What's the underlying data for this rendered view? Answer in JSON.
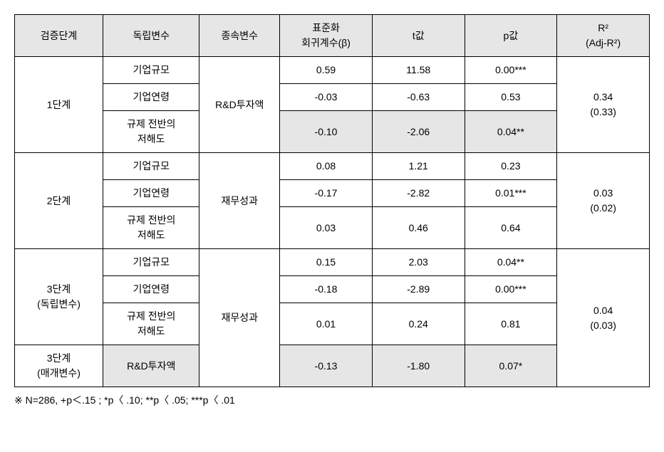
{
  "headers": {
    "stage": "검증단계",
    "indep": "독립변수",
    "dep": "종속변수",
    "beta": "표준화\n회귀계수(β)",
    "t": "t값",
    "p": "p값",
    "r2": "R²\n(Adj-R²)"
  },
  "stages": [
    {
      "label": "1단계",
      "dep": "R&D투자액",
      "r2": "0.34\n(0.33)",
      "rows": [
        {
          "indep": "기업규모",
          "beta": "0.59",
          "t": "11.58",
          "p": "0.00***",
          "shaded": false
        },
        {
          "indep": "기업연령",
          "beta": "-0.03",
          "t": "-0.63",
          "p": "0.53",
          "shaded": false
        },
        {
          "indep": "규제 전반의\n저해도",
          "beta": "-0.10",
          "t": "-2.06",
          "p": "0.04**",
          "shaded": true
        }
      ]
    },
    {
      "label": "2단계",
      "dep": "재무성과",
      "r2": "0.03\n(0.02)",
      "rows": [
        {
          "indep": "기업규모",
          "beta": "0.08",
          "t": "1.21",
          "p": "0.23",
          "shaded": false
        },
        {
          "indep": "기업연령",
          "beta": "-0.17",
          "t": "-2.82",
          "p": "0.01***",
          "shaded": false
        },
        {
          "indep": "규제 전반의\n저해도",
          "beta": "0.03",
          "t": "0.46",
          "p": "0.64",
          "shaded": false
        }
      ]
    }
  ],
  "stage3": {
    "label_indep": "3단계\n(독립변수)",
    "label_med": "3단계\n(매개변수)",
    "dep": "재무성과",
    "r2": "0.04\n(0.03)",
    "rows": [
      {
        "indep": "기업규모",
        "beta": "0.15",
        "t": "2.03",
        "p": "0.04**",
        "shaded": false
      },
      {
        "indep": "기업연령",
        "beta": "-0.18",
        "t": "-2.89",
        "p": "0.00***",
        "shaded": false
      },
      {
        "indep": "규제 전반의\n저해도",
        "beta": "0.01",
        "t": "0.24",
        "p": "0.81",
        "shaded": false
      }
    ],
    "mediator_row": {
      "indep": "R&D투자액",
      "beta": "-0.13",
      "t": "-1.80",
      "p": "0.07*",
      "shaded": true
    }
  },
  "footnote": "※ N=286,  +p＜.15 ; *p〈 .10; **p〈 .05; ***p〈 .01"
}
